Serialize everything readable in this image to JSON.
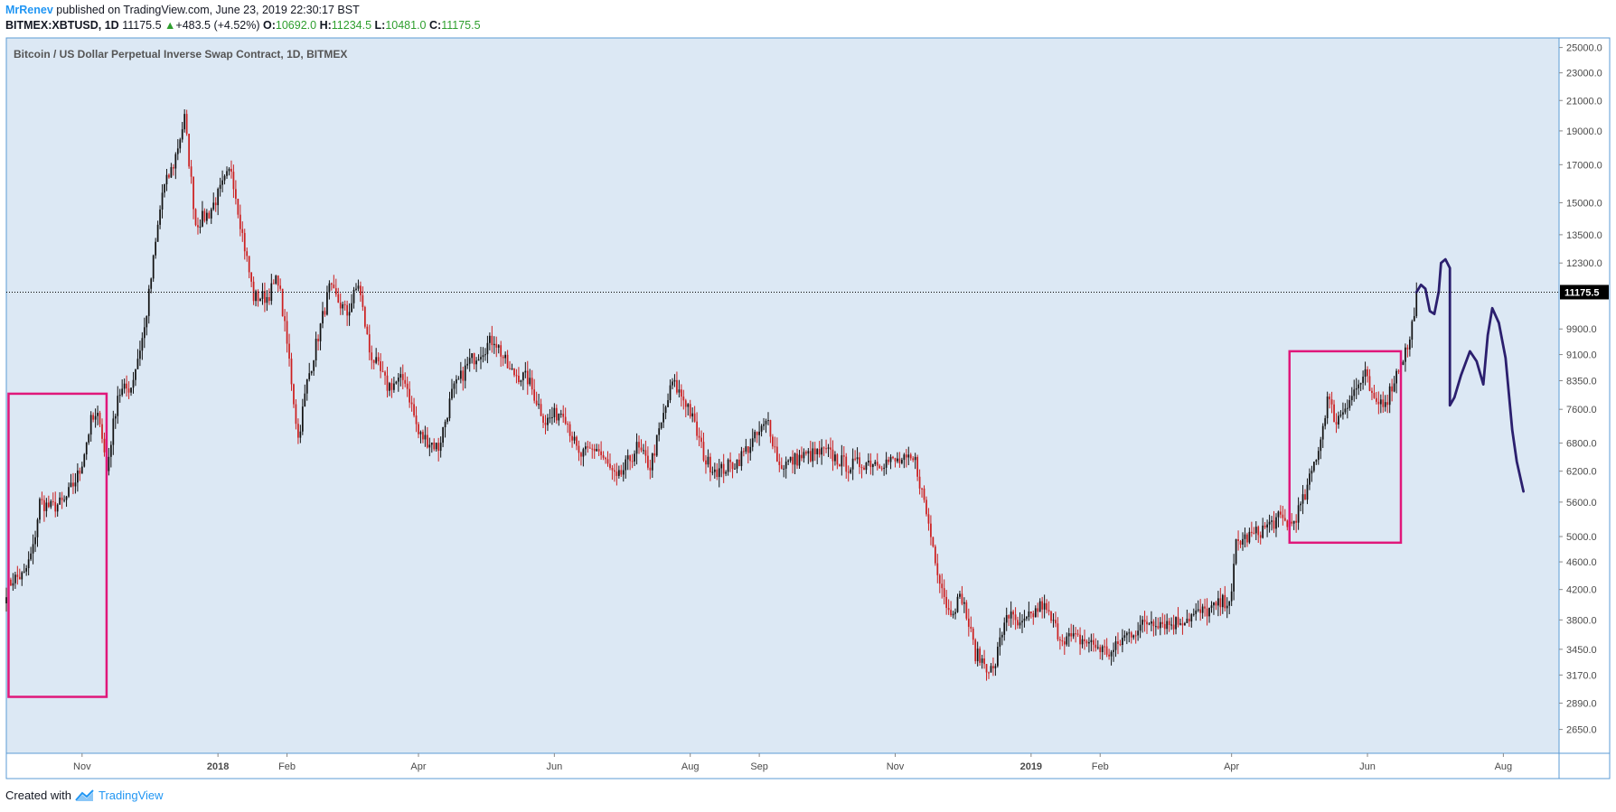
{
  "header": {
    "author": "MrRenev",
    "published_text": "published on TradingView.com, June 23, 2019 22:30:17 BST",
    "symbol": "BITMEX:XBTUSD, 1D",
    "last": "11175.5",
    "change_arrow": "▲",
    "change": "+483.5 (+4.52%)",
    "o_label": "O:",
    "o_value": "10692.0",
    "h_label": "H:",
    "h_value": "11234.5",
    "l_label": "L:",
    "l_value": "10481.0",
    "c_label": "C:",
    "c_value": "11175.5"
  },
  "footer": {
    "created_with": "Created with",
    "brand": "TradingView"
  },
  "colors": {
    "plot_bg": "#dce8f4",
    "up": "#111111",
    "down": "#cc1f1f",
    "box": "#e0177a",
    "drawing": "#2b1f6e",
    "price_label_bg": "#000000"
  },
  "chart_data": {
    "type": "candlestick",
    "title": "Bitcoin / US Dollar Perpetual Inverse Swap Contract, 1D, BITMEX",
    "y_scale": "log",
    "ylim": [
      2450,
      25800
    ],
    "y_ticks": [
      "25000.0",
      "23000.0",
      "21000.0",
      "19000.0",
      "17000.0",
      "15000.0",
      "13500.0",
      "12300.0",
      "9900.0",
      "9100.0",
      "8350.0",
      "7600.0",
      "6800.0",
      "6200.0",
      "5600.0",
      "5000.0",
      "4600.0",
      "4200.0",
      "3800.0",
      "3450.0",
      "3170.0",
      "2890.0",
      "2650.0"
    ],
    "x_range": [
      "2017-09-28",
      "2019-08-26"
    ],
    "x_ticks": [
      {
        "date": "2017-11-01",
        "label": "Nov"
      },
      {
        "date": "2018-01-01",
        "label": "2018"
      },
      {
        "date": "2018-02-01",
        "label": "Feb"
      },
      {
        "date": "2018-04-01",
        "label": "Apr"
      },
      {
        "date": "2018-06-01",
        "label": "Jun"
      },
      {
        "date": "2018-08-01",
        "label": "Aug"
      },
      {
        "date": "2018-09-01",
        "label": "Sep"
      },
      {
        "date": "2018-11-01",
        "label": "Nov"
      },
      {
        "date": "2019-01-01",
        "label": "2019"
      },
      {
        "date": "2019-02-01",
        "label": "Feb"
      },
      {
        "date": "2019-04-01",
        "label": "Apr"
      },
      {
        "date": "2019-06-01",
        "label": "Jun"
      },
      {
        "date": "2019-08-01",
        "label": "Aug"
      }
    ],
    "last_price": 11175.5,
    "last_price_label": "11175.5",
    "close_path": [
      [
        "2017-09-28",
        4200
      ],
      [
        "2017-10-01",
        4350
      ],
      [
        "2017-10-06",
        4400
      ],
      [
        "2017-10-10",
        4800
      ],
      [
        "2017-10-13",
        5600
      ],
      [
        "2017-10-18",
        5500
      ],
      [
        "2017-10-24",
        5600
      ],
      [
        "2017-10-31",
        6200
      ],
      [
        "2017-11-05",
        7300
      ],
      [
        "2017-11-09",
        7400
      ],
      [
        "2017-11-12",
        6200
      ],
      [
        "2017-11-17",
        8000
      ],
      [
        "2017-11-23",
        8200
      ],
      [
        "2017-11-29",
        9900
      ],
      [
        "2017-12-07",
        15500
      ],
      [
        "2017-12-12",
        17000
      ],
      [
        "2017-12-17",
        19800
      ],
      [
        "2017-12-22",
        14000
      ],
      [
        "2017-12-28",
        14500
      ],
      [
        "2018-01-07",
        16800
      ],
      [
        "2018-01-12",
        13500
      ],
      [
        "2018-01-17",
        11000
      ],
      [
        "2018-01-23",
        11000
      ],
      [
        "2018-01-28",
        11700
      ],
      [
        "2018-02-02",
        8900
      ],
      [
        "2018-02-06",
        6900
      ],
      [
        "2018-02-10",
        8300
      ],
      [
        "2018-02-20",
        11300
      ],
      [
        "2018-02-28",
        10400
      ],
      [
        "2018-03-05",
        11500
      ],
      [
        "2018-03-10",
        9200
      ],
      [
        "2018-03-18",
        8200
      ],
      [
        "2018-03-26",
        8400
      ],
      [
        "2018-04-01",
        7000
      ],
      [
        "2018-04-10",
        6700
      ],
      [
        "2018-04-16",
        8000
      ],
      [
        "2018-04-24",
        8900
      ],
      [
        "2018-05-05",
        9600
      ],
      [
        "2018-05-12",
        8600
      ],
      [
        "2018-05-20",
        8400
      ],
      [
        "2018-05-28",
        7300
      ],
      [
        "2018-06-05",
        7600
      ],
      [
        "2018-06-12",
        6500
      ],
      [
        "2018-06-20",
        6700
      ],
      [
        "2018-06-29",
        6000
      ],
      [
        "2018-07-08",
        6700
      ],
      [
        "2018-07-14",
        6300
      ],
      [
        "2018-07-24",
        8300
      ],
      [
        "2018-07-31",
        7700
      ],
      [
        "2018-08-08",
        6400
      ],
      [
        "2018-08-14",
        6200
      ],
      [
        "2018-08-22",
        6400
      ],
      [
        "2018-09-05",
        7300
      ],
      [
        "2018-09-10",
        6300
      ],
      [
        "2018-09-20",
        6500
      ],
      [
        "2018-10-01",
        6600
      ],
      [
        "2018-10-11",
        6300
      ],
      [
        "2018-10-20",
        6400
      ],
      [
        "2018-11-10",
        6400
      ],
      [
        "2018-11-14",
        5600
      ],
      [
        "2018-11-20",
        4500
      ],
      [
        "2018-11-25",
        3900
      ],
      [
        "2018-12-01",
        4100
      ],
      [
        "2018-12-07",
        3400
      ],
      [
        "2018-12-15",
        3200
      ],
      [
        "2018-12-21",
        3900
      ],
      [
        "2018-12-27",
        3700
      ],
      [
        "2019-01-06",
        4000
      ],
      [
        "2019-01-14",
        3600
      ],
      [
        "2019-01-25",
        3550
      ],
      [
        "2019-02-06",
        3400
      ],
      [
        "2019-02-12",
        3600
      ],
      [
        "2019-02-24",
        3800
      ],
      [
        "2019-03-05",
        3750
      ],
      [
        "2019-03-14",
        3850
      ],
      [
        "2019-03-24",
        3950
      ],
      [
        "2019-04-01",
        4100
      ],
      [
        "2019-04-03",
        4900
      ],
      [
        "2019-04-12",
        5050
      ],
      [
        "2019-04-22",
        5300
      ],
      [
        "2019-04-28",
        5200
      ],
      [
        "2019-05-04",
        5700
      ],
      [
        "2019-05-11",
        6900
      ],
      [
        "2019-05-14",
        7900
      ],
      [
        "2019-05-18",
        7300
      ],
      [
        "2019-05-23",
        7800
      ],
      [
        "2019-05-31",
        8500
      ],
      [
        "2019-06-04",
        7700
      ],
      [
        "2019-06-10",
        7900
      ],
      [
        "2019-06-16",
        8900
      ],
      [
        "2019-06-20",
        9500
      ],
      [
        "2019-06-23",
        11175
      ]
    ],
    "annotations": {
      "boxes": [
        {
          "from": "2017-09-29",
          "to": "2017-11-12",
          "low": 2950,
          "high": 8000
        },
        {
          "from": "2019-04-27",
          "to": "2019-06-16",
          "low": 4900,
          "high": 9200
        }
      ],
      "projection": [
        [
          "2019-06-23",
          11175
        ],
        [
          "2019-06-25",
          11450
        ],
        [
          "2019-06-27",
          11300
        ],
        [
          "2019-06-29",
          10500
        ],
        [
          "2019-07-01",
          10400
        ],
        [
          "2019-07-03",
          11200
        ],
        [
          "2019-07-04",
          12300
        ],
        [
          "2019-07-06",
          12450
        ],
        [
          "2019-07-08",
          12100
        ],
        [
          "2019-07-08",
          7700
        ],
        [
          "2019-07-10",
          7900
        ],
        [
          "2019-07-13",
          8500
        ],
        [
          "2019-07-17",
          9200
        ],
        [
          "2019-07-20",
          8900
        ],
        [
          "2019-07-23",
          8250
        ],
        [
          "2019-07-25",
          9700
        ],
        [
          "2019-07-27",
          10600
        ],
        [
          "2019-07-30",
          10100
        ],
        [
          "2019-08-02",
          9000
        ],
        [
          "2019-08-05",
          7100
        ],
        [
          "2019-08-07",
          6400
        ],
        [
          "2019-08-10",
          5800
        ]
      ]
    }
  }
}
